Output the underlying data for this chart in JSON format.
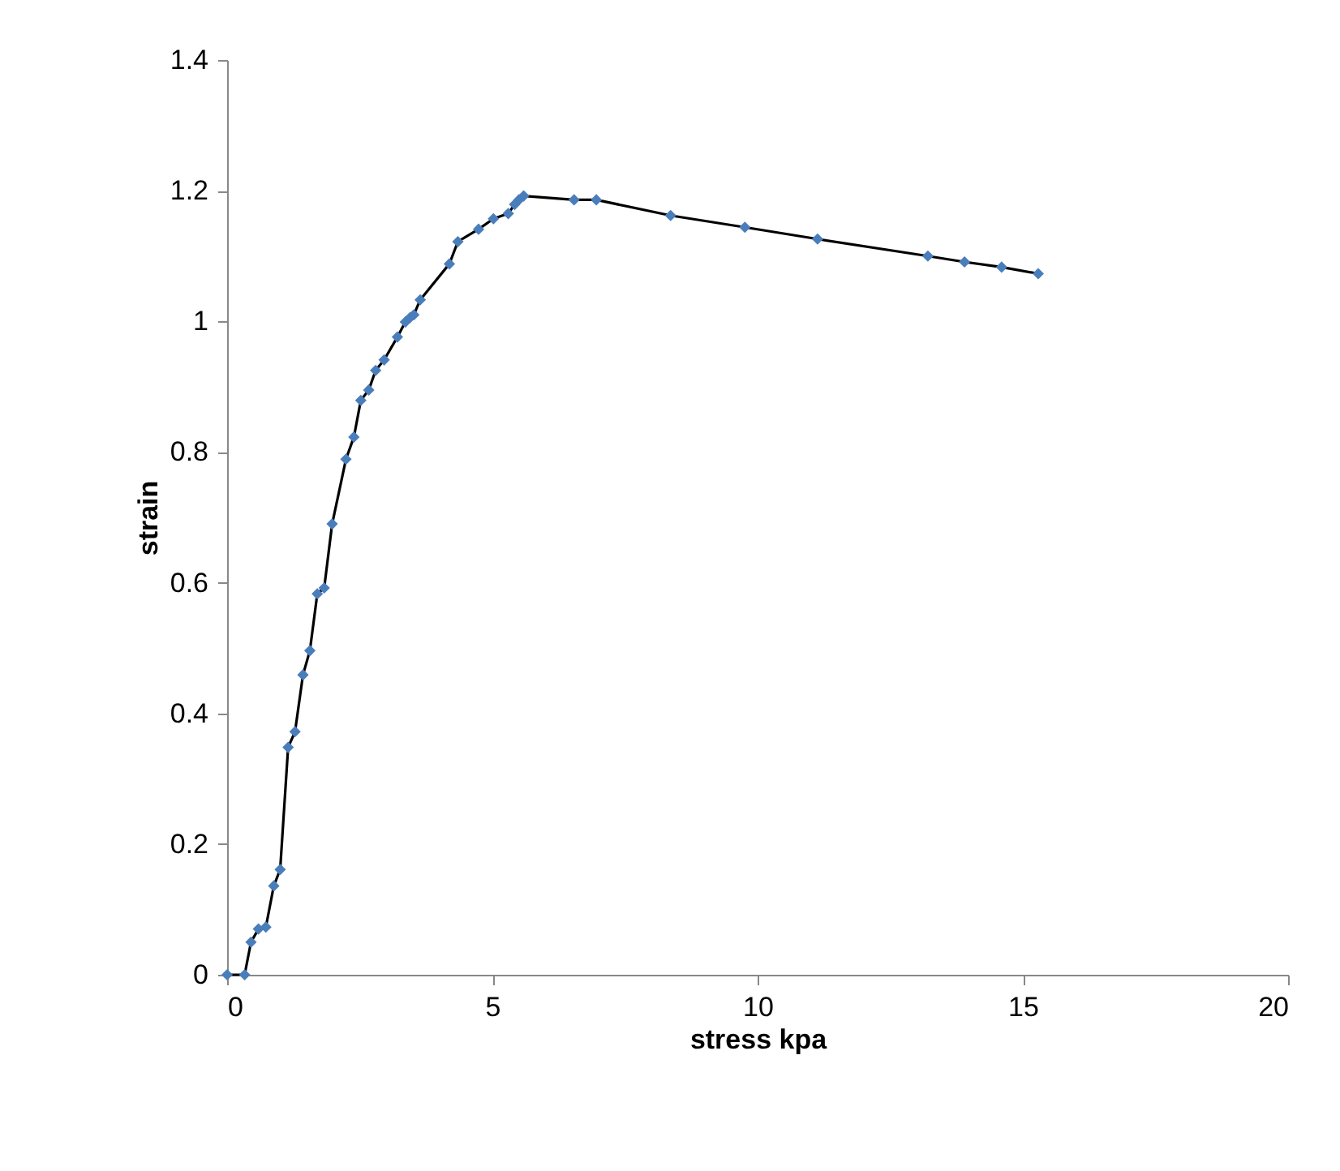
{
  "chart_data": {
    "type": "line",
    "xlabel": "stress kpa",
    "ylabel": "strain",
    "x": [
      0,
      0.33,
      0.45,
      0.59,
      0.73,
      0.88,
      1.0,
      1.15,
      1.28,
      1.43,
      1.56,
      1.7,
      1.83,
      1.98,
      2.24,
      2.39,
      2.52,
      2.67,
      2.8,
      2.96,
      3.21,
      3.36,
      3.45,
      3.52,
      3.64,
      4.19,
      4.35,
      4.74,
      5.02,
      5.3,
      5.42,
      5.5,
      5.59,
      6.54,
      6.96,
      8.36,
      9.76,
      11.13,
      13.21,
      13.9,
      14.6,
      15.29
    ],
    "series": [
      {
        "color": "#4a7ebb",
        "values": [
          0,
          0,
          0.05,
          0.07,
          0.073,
          0.136,
          0.161,
          0.348,
          0.372,
          0.459,
          0.496,
          0.583,
          0.592,
          0.69,
          0.789,
          0.823,
          0.879,
          0.895,
          0.925,
          0.941,
          0.976,
          0.999,
          1.006,
          1.01,
          1.033,
          1.088,
          1.122,
          1.141,
          1.157,
          1.165,
          1.179,
          1.186,
          1.192,
          1.186,
          1.186,
          1.162,
          1.144,
          1.126,
          1.1,
          1.091,
          1.083,
          1.073
        ]
      }
    ],
    "xlim": [
      0,
      20
    ],
    "xticks": [
      0,
      5,
      10,
      15,
      20
    ],
    "ylim": [
      0,
      1.4
    ],
    "yticks": [
      0,
      0.2,
      0.4,
      0.6,
      0.8,
      1,
      1.2,
      1.4
    ],
    "grid": false,
    "marker": "diamond",
    "line_style": "solid"
  }
}
